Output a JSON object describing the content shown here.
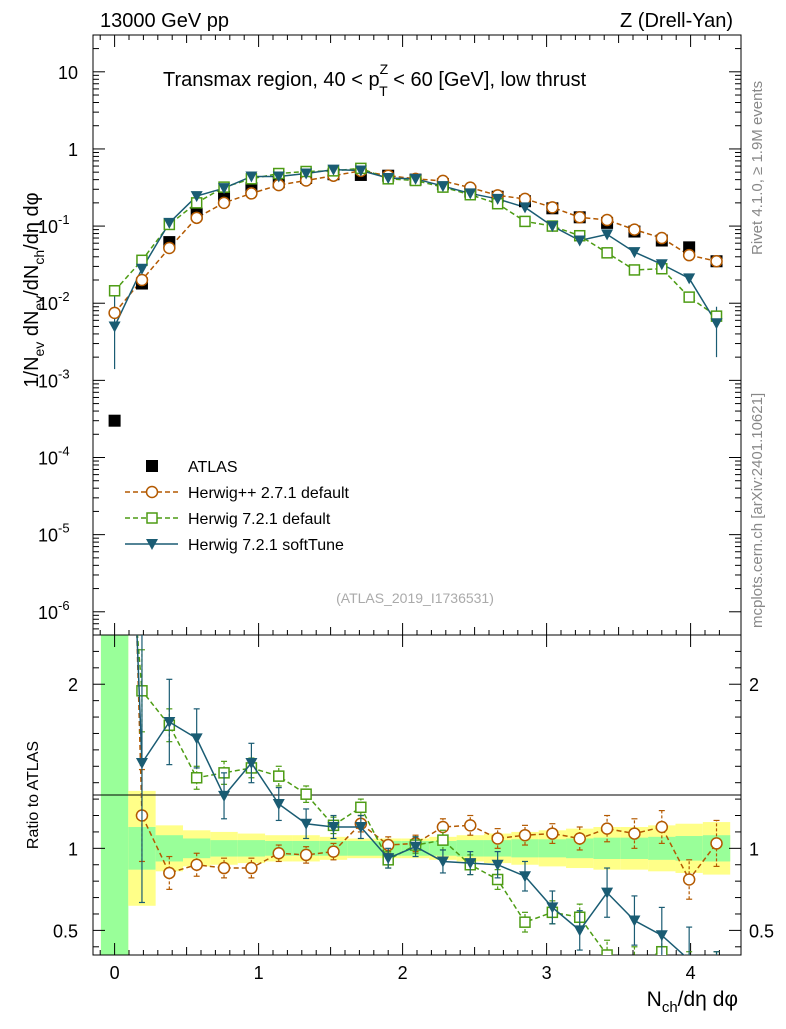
{
  "header": {
    "left": "13000 GeV pp",
    "right": "Z (Drell-Yan)"
  },
  "chart_data": {
    "type": "scatter",
    "title": "Transmax region, 40 < p_T^Z < 60 [GeV], low thrust",
    "title_parts": {
      "before": "Transmax region, 40 < p",
      "sup": "Z",
      "sub": "T",
      "after": " < 60 [GeV], low thrust"
    },
    "ylabel": "1/N_ev dN_ev/dN_ch/dη dφ",
    "ylabel_parts": {
      "a": "1/N",
      "s1": "ev",
      "b": " dN",
      "s2": "ev",
      "c": "/dN",
      "s3": "ch",
      "d": "/dη dφ"
    },
    "xlabel": "N_ch/dη dφ",
    "xlabel_parts": {
      "a": "N",
      "s1": "ch",
      "b": "/dη dφ"
    },
    "ratio_ylabel": "Ratio to ATLAS",
    "y_scale": "log",
    "ylim": [
      5e-07,
      30
    ],
    "xlim": [
      -0.15,
      4.35
    ],
    "ratio_ylim": [
      0.35,
      2.3
    ],
    "x_ticks": [
      "0",
      "1",
      "2",
      "3",
      "4"
    ],
    "y_ticks": [
      {
        "base": "10",
        "exp": "-6"
      },
      {
        "base": "10",
        "exp": "-5"
      },
      {
        "base": "10",
        "exp": "-4"
      },
      {
        "base": "10",
        "exp": "-3"
      },
      {
        "base": "10",
        "exp": "-2"
      },
      {
        "base": "10",
        "exp": "-1"
      },
      {
        "base": "1",
        "exp": ""
      },
      {
        "base": "10",
        "exp": ""
      }
    ],
    "ratio_ticks": [
      "0.5",
      "1",
      "2"
    ],
    "side_text_upper": "Rivet 4.1.0, ≥ 1.9M events",
    "side_text_lower": "mcplots.cern.ch [arXiv:2401.10621]",
    "analysis_label": "(ATLAS_2019_I1736531)",
    "x": [
      0,
      0.19,
      0.38,
      0.57,
      0.76,
      0.95,
      1.14,
      1.33,
      1.52,
      1.71,
      1.9,
      2.09,
      2.28,
      2.47,
      2.66,
      2.85,
      3.04,
      3.23,
      3.42,
      3.61,
      3.8,
      3.99,
      4.18
    ],
    "series": [
      {
        "name": "ATLAS",
        "color": "#000000",
        "marker": "filled-square",
        "values": [
          0.0003,
          0.018,
          0.062,
          0.145,
          0.24,
          0.31,
          0.37,
          0.42,
          0.47,
          0.46,
          0.45,
          0.4,
          0.35,
          0.28,
          0.24,
          0.21,
          0.17,
          0.13,
          0.11,
          0.085,
          0.065,
          0.053,
          0.035
        ]
      },
      {
        "name": "Herwig++ 2.7.1 default",
        "color": "#b35900",
        "marker": "open-circle",
        "dashed": true,
        "values": [
          0.0075,
          0.02,
          0.052,
          0.128,
          0.2,
          0.265,
          0.34,
          0.39,
          0.45,
          0.52,
          0.45,
          0.41,
          0.385,
          0.315,
          0.25,
          0.225,
          0.175,
          0.13,
          0.12,
          0.09,
          0.07,
          0.042,
          0.035
        ],
        "ratio": [
          1.2,
          0.85,
          0.9,
          0.88,
          0.88,
          0.97,
          0.96,
          0.98,
          1.15,
          1.02,
          1.03,
          1.13,
          1.14,
          1.06,
          1.08,
          1.09,
          1.06,
          1.12,
          1.09,
          1.13,
          0.81,
          1.03
        ],
        "ratio_err": [
          0.28,
          0.1,
          0.07,
          0.06,
          0.06,
          0.05,
          0.05,
          0.05,
          0.05,
          0.05,
          0.05,
          0.05,
          0.06,
          0.06,
          0.06,
          0.06,
          0.07,
          0.08,
          0.09,
          0.1,
          0.12,
          0.14
        ]
      },
      {
        "name": "Herwig 7.2.1 default",
        "color": "#4d9c14",
        "marker": "open-square",
        "dashed": true,
        "values": [
          0.0145,
          0.036,
          0.105,
          0.2,
          0.32,
          0.41,
          0.48,
          0.51,
          0.52,
          0.56,
          0.41,
          0.39,
          0.32,
          0.255,
          0.195,
          0.115,
          0.1,
          0.075,
          0.045,
          0.027,
          0.028,
          0.012,
          0.0068
        ],
        "ratio": [
          1.96,
          1.75,
          1.43,
          1.46,
          1.49,
          1.44,
          1.33,
          1.14,
          1.25,
          0.93,
          1.02,
          1.05,
          0.9,
          0.81,
          0.55,
          0.61,
          0.58,
          0.35,
          0.3,
          0.37,
          0.22,
          0.19
        ],
        "ratio_err": [
          0.25,
          0.1,
          0.07,
          0.07,
          0.06,
          0.06,
          0.05,
          0.05,
          0.05,
          0.05,
          0.05,
          0.06,
          0.06,
          0.06,
          0.06,
          0.07,
          0.08,
          0.09,
          0.1,
          0.12,
          0.15,
          0.18
        ]
      },
      {
        "name": "Herwig 7.2.1 softTune",
        "color": "#1a5c73",
        "marker": "filled-triangle-down",
        "values": [
          0.005,
          0.028,
          0.11,
          0.245,
          0.31,
          0.44,
          0.44,
          0.48,
          0.54,
          0.525,
          0.42,
          0.41,
          0.33,
          0.265,
          0.225,
          0.175,
          0.1,
          0.065,
          0.078,
          0.046,
          0.032,
          0.021,
          0.0055
        ],
        "ratio": [
          1.52,
          1.77,
          1.67,
          1.32,
          1.52,
          1.27,
          1.15,
          1.13,
          1.13,
          0.94,
          1.01,
          0.92,
          0.91,
          0.9,
          0.83,
          0.64,
          0.5,
          0.73,
          0.56,
          0.47,
          0.32,
          0.12
        ],
        "ratio_err": [
          0.85,
          0.26,
          0.18,
          0.14,
          0.12,
          0.1,
          0.09,
          0.07,
          0.07,
          0.06,
          0.06,
          0.07,
          0.07,
          0.08,
          0.09,
          0.1,
          0.12,
          0.15,
          0.15,
          0.17,
          0.2,
          0.25
        ]
      }
    ],
    "band_inner_halfwidth": [
      2.0,
      0.13,
      0.08,
      0.06,
      0.05,
      0.05,
      0.045,
      0.045,
      0.045,
      0.045,
      0.045,
      0.045,
      0.045,
      0.05,
      0.05,
      0.055,
      0.055,
      0.06,
      0.065,
      0.065,
      0.07,
      0.075,
      0.08
    ],
    "band_outer_halfwidth": [
      2.0,
      0.35,
      0.14,
      0.11,
      0.1,
      0.09,
      0.08,
      0.08,
      0.07,
      0.06,
      0.06,
      0.06,
      0.07,
      0.08,
      0.09,
      0.1,
      0.11,
      0.12,
      0.13,
      0.13,
      0.14,
      0.15,
      0.16
    ]
  }
}
